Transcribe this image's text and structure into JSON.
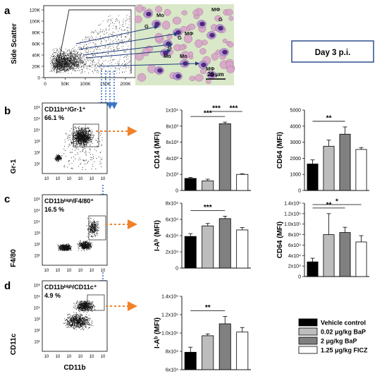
{
  "panel_labels": {
    "a": "a",
    "b": "b",
    "c": "c",
    "d": "d"
  },
  "day_label": "Day 3 p.i.",
  "scatter": {
    "ylabel": "Side Scatter",
    "x_ticks": [
      "0",
      "50K",
      "100K",
      "150K",
      "200K"
    ],
    "y_ticks": [
      "0",
      "20K",
      "40K",
      "60K",
      "80K",
      "100K",
      "120K"
    ]
  },
  "micrograph": {
    "cell_labels": [
      "Mo",
      "MΦ",
      "G",
      "G",
      "MΦ",
      "G",
      "G",
      "Mo",
      "MΦ",
      "Mo"
    ],
    "scale_bar": "20 μm"
  },
  "flow_panels": [
    {
      "gate_label": "CD11b⁺/Gr-1⁺",
      "percent": "66.1 %",
      "ylabel": "Gr-1"
    },
    {
      "gate_label": "CD11bʰⁱᵍʰ/F4/80⁺",
      "percent": "16.5 %",
      "ylabel": "F4/80"
    },
    {
      "gate_label": "CD11bʰⁱᵍʰ/CD11c⁺",
      "percent": "4.9 %",
      "ylabel": "CD11c",
      "xlabel": "CD11b"
    }
  ],
  "flow_axis_ticks": {
    "x": [
      "10",
      "10",
      "10",
      "10",
      "10",
      "10"
    ],
    "y": [
      "10⁶",
      "10⁵",
      "10⁴",
      "10³",
      "10²",
      "10¹"
    ]
  },
  "legend": {
    "entries": [
      "Vehicle control",
      "0.02 μg/kg BaP",
      "2 μg/kg BaP",
      "1.25 μg/kg FICZ"
    ],
    "colors": [
      "#000000",
      "#bdbdbd",
      "#808080",
      "#ffffff"
    ]
  },
  "chart_data": [
    {
      "type": "bar",
      "ylabel": "CD14  (MFI)",
      "categories": [
        "Vehicle control",
        "0.02 μg/kg BaP",
        "2 μg/kg BaP",
        "1.25 μg/kg FICZ"
      ],
      "values": [
        1500,
        1200,
        8300,
        2000
      ],
      "errors": [
        120,
        200,
        200,
        80
      ],
      "ylim": [
        0,
        10000
      ],
      "y_tick_values": [
        0,
        2000,
        4000,
        6000,
        8000,
        10000
      ],
      "y_ticks": [
        "0",
        "2x10³",
        "4x10³",
        "6x10³",
        "8x10³",
        "1x10⁴"
      ],
      "significance": [
        {
          "from": 0,
          "to": 2,
          "label": "***",
          "level": 0
        },
        {
          "from": 1,
          "to": 2,
          "label": "***",
          "level": 1
        },
        {
          "from": 2,
          "to": 3,
          "label": "***",
          "level": 1
        }
      ]
    },
    {
      "type": "bar",
      "ylabel": "CD64  (MFI)",
      "categories": [
        "Vehicle control",
        "0.02 μg/kg BaP",
        "2 μg/kg BaP",
        "1.25 μg/kg FICZ"
      ],
      "values": [
        1650,
        2750,
        3500,
        2550
      ],
      "errors": [
        250,
        380,
        450,
        120
      ],
      "ylim": [
        0,
        5000
      ],
      "y_tick_values": [
        0,
        1000,
        2000,
        3000,
        4000,
        5000
      ],
      "y_ticks": [
        "0",
        "1000",
        "2000",
        "3000",
        "4000",
        "5000"
      ],
      "significance": [
        {
          "from": 0,
          "to": 2,
          "label": "**",
          "level": 0
        }
      ]
    },
    {
      "type": "bar",
      "ylabel": "I-Aᵇ  (MFI)",
      "categories": [
        "Vehicle control",
        "0.02 μg/kg BaP",
        "2 μg/kg BaP",
        "1.25 μg/kg FICZ"
      ],
      "values": [
        39000,
        52000,
        61000,
        47000
      ],
      "errors": [
        3500,
        3000,
        3000,
        3000
      ],
      "ylim": [
        0,
        80000
      ],
      "y_tick_values": [
        0,
        20000,
        40000,
        60000,
        80000
      ],
      "y_ticks": [
        "0",
        "2x10⁴",
        "4x10⁴",
        "6x10⁴",
        "8x10⁴"
      ],
      "significance": [
        {
          "from": 0,
          "to": 2,
          "label": "***",
          "level": 0
        }
      ]
    },
    {
      "type": "bar",
      "ylabel": "CD64  (MFI)",
      "categories": [
        "Vehicle control",
        "0.02 μg/kg BaP",
        "2 μg/kg BaP",
        "1.25 μg/kg FICZ"
      ],
      "values": [
        28000,
        80000,
        84000,
        66000
      ],
      "errors": [
        7000,
        40000,
        10000,
        12000
      ],
      "ylim": [
        0,
        140000
      ],
      "y_tick_values": [
        0,
        20000,
        40000,
        60000,
        80000,
        100000,
        120000,
        140000
      ],
      "y_ticks": [
        "0",
        "2x10⁴",
        "4x10⁴",
        "6x10⁴",
        "8x10⁴",
        "1.0x10⁵",
        "1.2x10⁵",
        "1.4x10⁵"
      ],
      "significance": [
        {
          "from": 0,
          "to": 3,
          "label": "*",
          "level": 1
        },
        {
          "from": 0,
          "to": 2,
          "label": "**",
          "level": 0
        }
      ]
    },
    {
      "type": "bar",
      "ylabel": "I-Aᵇ  (MFI)",
      "categories": [
        "Vehicle control",
        "0.02 μg/kg BaP",
        "2 μg/kg BaP",
        "1.25 μg/kg FICZ"
      ],
      "values": [
        79000,
        97000,
        110000,
        101000
      ],
      "errors": [
        5500,
        2000,
        8000,
        5000
      ],
      "ylim": [
        60000,
        140000
      ],
      "y_tick_values": [
        60000,
        80000,
        100000,
        120000,
        140000
      ],
      "y_ticks": [
        "6x10⁴",
        "8x10⁴",
        "1.0x10⁵",
        "1.2x10⁵",
        "1.4x10⁵"
      ],
      "significance": [
        {
          "from": 0,
          "to": 2,
          "label": "**",
          "level": 0
        }
      ]
    }
  ]
}
